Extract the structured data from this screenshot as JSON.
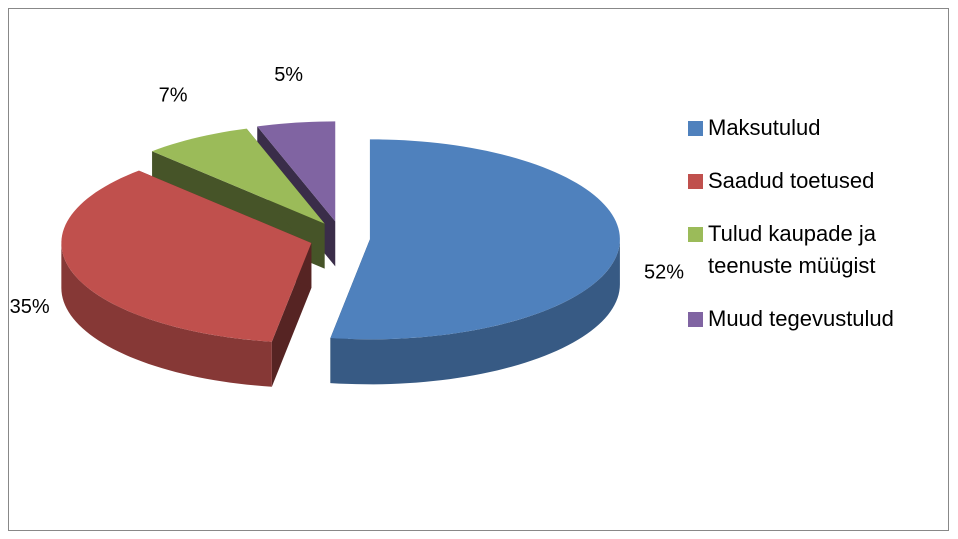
{
  "chart_data": {
    "type": "pie",
    "categories": [
      "Maksutulud",
      "Saadud toetused",
      "Tulud kaupade ja teenuste müügist",
      "Muud tegevustulud"
    ],
    "values": [
      52,
      35,
      7,
      5
    ],
    "value_labels": [
      "52%",
      "35%",
      "7%",
      "5%"
    ],
    "colors": [
      "#4f81bd",
      "#c0504d",
      "#9bbb59",
      "#8064a2"
    ],
    "legend": "right"
  }
}
